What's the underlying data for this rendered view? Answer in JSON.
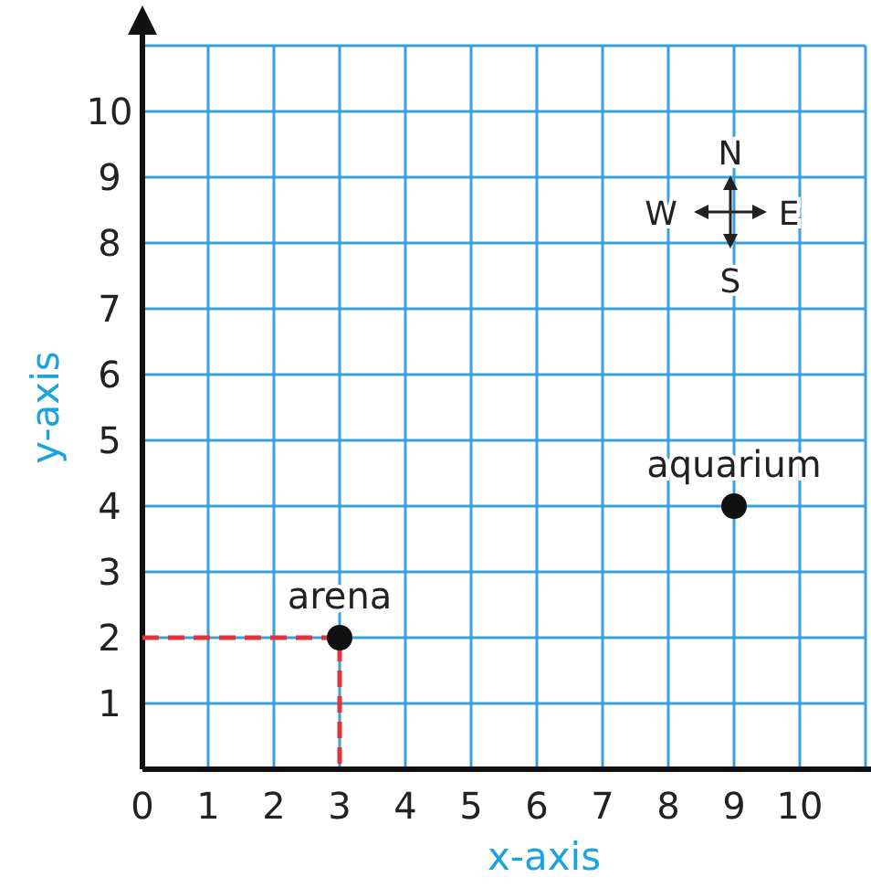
{
  "chart_data": {
    "type": "scatter",
    "xlabel": "x-axis",
    "ylabel": "y-axis",
    "xlim": [
      0,
      11
    ],
    "ylim": [
      0,
      11
    ],
    "xticks": [
      0,
      1,
      2,
      3,
      4,
      5,
      6,
      7,
      8,
      9,
      10
    ],
    "yticks": [
      1,
      2,
      3,
      4,
      5,
      6,
      7,
      8,
      9,
      10
    ],
    "grid": true,
    "series": [
      {
        "type": "line",
        "color": "#e0333c",
        "line_style": "dashed",
        "marker": "none",
        "x": [
          0,
          3,
          3
        ],
        "values": [
          2,
          2,
          0
        ]
      },
      {
        "color": "#111111",
        "marker": "circle",
        "x": [
          3,
          9
        ],
        "values": [
          2,
          4
        ]
      }
    ],
    "annotations": [
      {
        "text": "arena",
        "x": 3,
        "y": 2
      },
      {
        "text": "aquarium",
        "x": 9,
        "y": 4
      },
      "N",
      "E",
      "S",
      "W"
    ]
  }
}
